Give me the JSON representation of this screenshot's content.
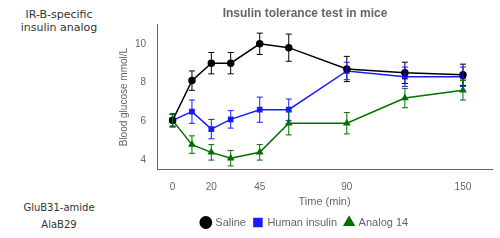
{
  "chart_data": {
    "type": "line",
    "title": "Insulin tolerance test in mice",
    "xlabel": "Time (min)",
    "ylabel": "Blood glucose mmol/L",
    "x": [
      0,
      10,
      20,
      30,
      45,
      60,
      90,
      120,
      150
    ],
    "series": [
      {
        "name": "Saline",
        "color": "#000000",
        "marker": "o",
        "values": [
          6.05,
          8.1,
          9.0,
          9.0,
          10.0,
          9.8,
          8.7,
          8.5,
          8.4
        ],
        "yerr": [
          0.3,
          0.5,
          0.55,
          0.55,
          0.55,
          0.7,
          0.65,
          0.55,
          0.55
        ]
      },
      {
        "name": "Human insulin",
        "color": "#1a1aff",
        "marker": "s",
        "values": [
          6.05,
          6.5,
          5.6,
          6.1,
          6.6,
          6.6,
          8.6,
          8.3,
          8.3
        ],
        "yerr": [
          0.35,
          0.6,
          0.5,
          0.45,
          0.65,
          0.55,
          0.45,
          0.5,
          0.5
        ]
      },
      {
        "name": "Analog 14",
        "color": "#007000",
        "marker": "^",
        "values": [
          6.05,
          4.8,
          4.4,
          4.1,
          4.4,
          5.9,
          5.9,
          7.2,
          7.6
        ],
        "yerr": [
          0.3,
          0.45,
          0.4,
          0.4,
          0.4,
          0.6,
          0.55,
          0.5,
          0.5
        ]
      }
    ],
    "xlim": [
      -8,
      165
    ],
    "ylim": [
      3.5,
      11.0
    ],
    "xticks": [
      0,
      20,
      45,
      90,
      150
    ],
    "yticks": [
      4,
      6,
      8,
      10
    ],
    "grid": false,
    "legend": "bottom",
    "annotations": [
      "IR-B-specific\ninsulin analog",
      "GluB31-amide",
      "AlaB29"
    ]
  }
}
